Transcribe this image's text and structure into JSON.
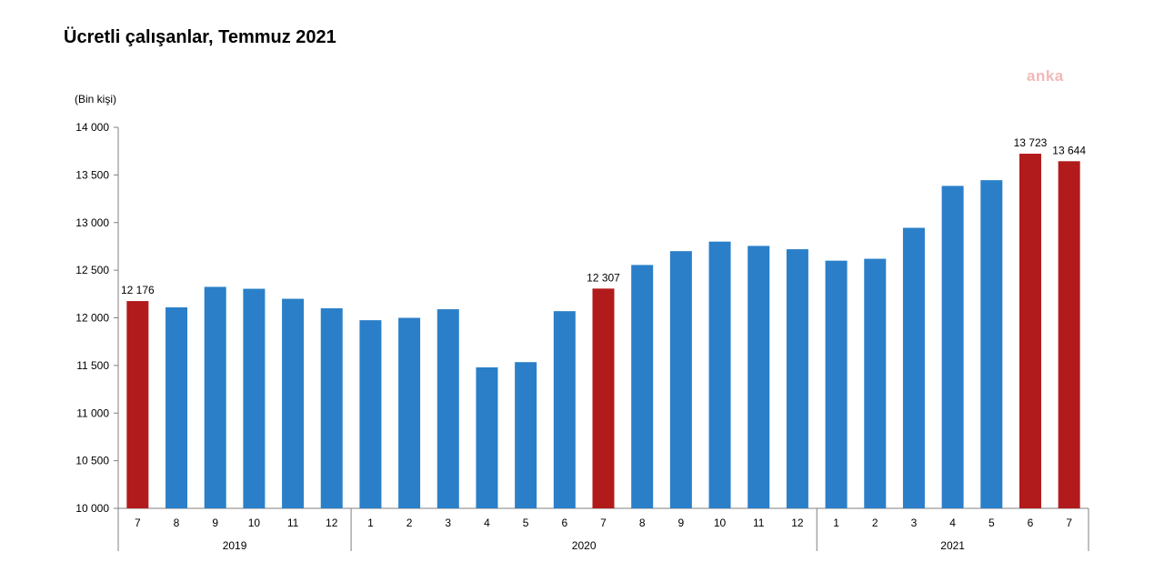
{
  "title": "Ücretli çalışanlar, Temmuz 2021",
  "watermark": "anka",
  "chart_data": {
    "type": "bar",
    "title": "Ücretli çalışanlar, Temmuz 2021",
    "ylabel": "(Bin kişi)",
    "xlabel": "",
    "ylim": [
      10000,
      14000
    ],
    "yticks": [
      10000,
      10500,
      11000,
      11500,
      12000,
      12500,
      13000,
      13500,
      14000
    ],
    "ytick_labels": [
      "10 000",
      "10 500",
      "11 000",
      "11 500",
      "12 000",
      "12 500",
      "13 000",
      "13 500",
      "14 000"
    ],
    "grid": false,
    "categories": [
      "7",
      "8",
      "9",
      "10",
      "11",
      "12",
      "1",
      "2",
      "3",
      "4",
      "5",
      "6",
      "7",
      "8",
      "9",
      "10",
      "11",
      "12",
      "1",
      "2",
      "3",
      "4",
      "5",
      "6",
      "7"
    ],
    "values": [
      12176,
      12110,
      12325,
      12305,
      12200,
      12100,
      11975,
      12000,
      12090,
      11480,
      11535,
      12070,
      12307,
      12555,
      12700,
      12800,
      12755,
      12720,
      12600,
      12620,
      12945,
      13385,
      13445,
      13723,
      13644
    ],
    "highlight": [
      true,
      false,
      false,
      false,
      false,
      false,
      false,
      false,
      false,
      false,
      false,
      false,
      true,
      false,
      false,
      false,
      false,
      false,
      false,
      false,
      false,
      false,
      false,
      true,
      true
    ],
    "data_labels": [
      "12 176",
      "",
      "",
      "",
      "",
      "",
      "",
      "",
      "",
      "",
      "",
      "",
      "12 307",
      "",
      "",
      "",
      "",
      "",
      "",
      "",
      "",
      "",
      "",
      "13 723",
      "13 644"
    ],
    "groups": [
      {
        "label": "2019",
        "start": 0,
        "end": 5
      },
      {
        "label": "2020",
        "start": 6,
        "end": 17
      },
      {
        "label": "2021",
        "start": 18,
        "end": 24
      }
    ],
    "colors": {
      "default": "#2a7fc8",
      "highlight": "#b21b1b",
      "axis": "#808080"
    }
  }
}
